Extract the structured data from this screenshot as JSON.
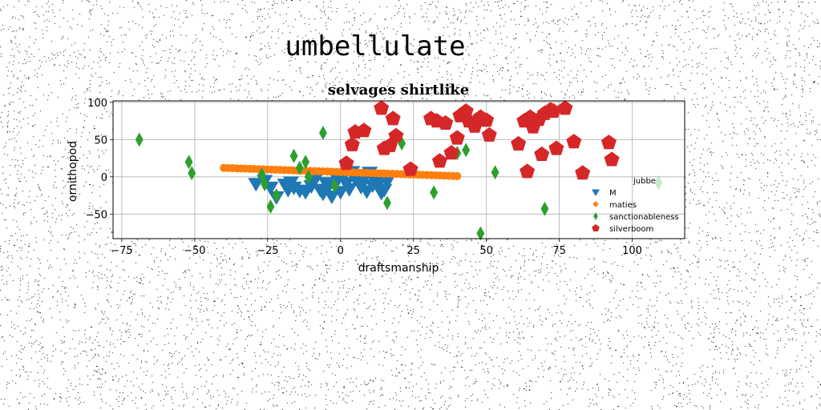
{
  "page": {
    "suptitle": "umbellulate"
  },
  "chart_data": {
    "type": "scatter",
    "title": "selvages shirtlike",
    "xlabel": "draftsmanship",
    "ylabel": "ornithopod",
    "xlim": [
      -78,
      118
    ],
    "ylim": [
      -83,
      102
    ],
    "xticks": [
      -75,
      -50,
      -25,
      0,
      25,
      50,
      75,
      100
    ],
    "yticks": [
      -50,
      0,
      50,
      100
    ],
    "grid": true,
    "legend": {
      "title": "jubbe",
      "placement": "lower-right"
    },
    "series": [
      {
        "name": "M",
        "marker": "triangle-down",
        "color": "#1f77b4",
        "points": [
          [
            -29,
            -9
          ],
          [
            -26,
            -5
          ],
          [
            -24,
            -14
          ],
          [
            -22,
            -27
          ],
          [
            -19,
            -10
          ],
          [
            -17,
            -7
          ],
          [
            -14,
            -18
          ],
          [
            -12,
            -20
          ],
          [
            -10,
            -12
          ],
          [
            -9,
            -5
          ],
          [
            -7,
            -17
          ],
          [
            -6,
            -22
          ],
          [
            -4,
            -12
          ],
          [
            -3,
            -26
          ],
          [
            -1,
            -4
          ],
          [
            1,
            2
          ],
          [
            2,
            -8
          ],
          [
            3,
            -16
          ],
          [
            4,
            7
          ],
          [
            6,
            -6
          ],
          [
            7,
            -13
          ],
          [
            8,
            -2
          ],
          [
            9,
            -19
          ],
          [
            10,
            6
          ],
          [
            11,
            -11
          ],
          [
            12,
            -4
          ],
          [
            13,
            -9
          ],
          [
            14,
            -21
          ],
          [
            15,
            -17
          ],
          [
            16,
            -6
          ],
          [
            -5,
            -8
          ],
          [
            0,
            -20
          ],
          [
            -8,
            3
          ],
          [
            5,
            -2
          ],
          [
            -16,
            -14
          ],
          [
            -18,
            -17
          ]
        ]
      },
      {
        "name": "maties",
        "marker": "circle",
        "color": "#ff7f0e",
        "points": "line"
      },
      {
        "name": "sanctionableness",
        "marker": "diamond",
        "color": "#2ca02c",
        "points": [
          [
            -69,
            50
          ],
          [
            -52,
            20
          ],
          [
            -51,
            5
          ],
          [
            -27,
            3
          ],
          [
            -26,
            -10
          ],
          [
            -24,
            -40
          ],
          [
            -22,
            -25
          ],
          [
            -16,
            28
          ],
          [
            -14,
            12
          ],
          [
            -12,
            20
          ],
          [
            -11,
            0
          ],
          [
            -6,
            59
          ],
          [
            -2,
            -12
          ],
          [
            16,
            -35
          ],
          [
            21,
            45
          ],
          [
            32,
            -21
          ],
          [
            40,
            32
          ],
          [
            43,
            36
          ],
          [
            48,
            -76
          ],
          [
            53,
            6
          ],
          [
            70,
            -43
          ],
          [
            109,
            -8
          ]
        ]
      },
      {
        "name": "silverboom",
        "marker": "pentagon",
        "color": "#d62728",
        "points": [
          [
            2,
            18
          ],
          [
            4,
            43
          ],
          [
            5,
            60
          ],
          [
            8,
            62
          ],
          [
            14,
            92
          ],
          [
            15,
            38
          ],
          [
            17,
            42
          ],
          [
            18,
            78
          ],
          [
            19,
            55
          ],
          [
            24,
            10
          ],
          [
            31,
            78
          ],
          [
            33,
            75
          ],
          [
            34,
            21
          ],
          [
            36,
            72
          ],
          [
            38,
            32
          ],
          [
            40,
            52
          ],
          [
            41,
            82
          ],
          [
            43,
            88
          ],
          [
            44,
            75
          ],
          [
            46,
            68
          ],
          [
            48,
            80
          ],
          [
            50,
            76
          ],
          [
            51,
            56
          ],
          [
            61,
            44
          ],
          [
            63,
            75
          ],
          [
            64,
            7
          ],
          [
            65,
            80
          ],
          [
            66,
            67
          ],
          [
            68,
            77
          ],
          [
            69,
            30
          ],
          [
            70,
            85
          ],
          [
            72,
            90
          ],
          [
            73,
            88
          ],
          [
            74,
            38
          ],
          [
            77,
            92
          ],
          [
            80,
            47
          ],
          [
            83,
            5
          ],
          [
            92,
            46
          ],
          [
            93,
            23
          ]
        ]
      }
    ],
    "maties_line": {
      "x_start": -40,
      "x_end": 40,
      "y_start": 12,
      "y_end": 1,
      "count": 55
    }
  }
}
